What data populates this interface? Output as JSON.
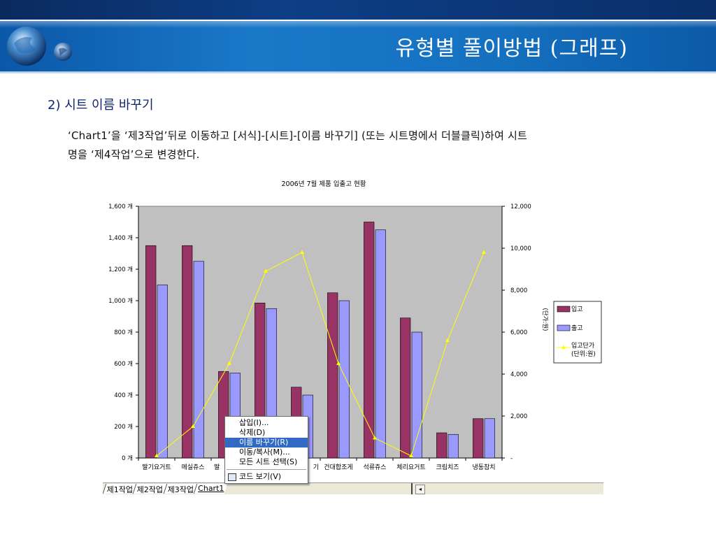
{
  "slide": {
    "title": "유형별 풀이방법 (그래프)",
    "section_heading": "2) 시트 이름 바꾸기",
    "body_line1": "‘Chart1’을 ‘제3작업’뒤로 이동하고 [서식]-[시트]-[이름 바꾸기] (또는 시트명에서 더블클릭)하여 시트",
    "body_line2": "명을 ‘제4작업’으로 변경한다."
  },
  "colors": {
    "bar_in": "#993366",
    "bar_out": "#9999ff",
    "line": "#ffff00",
    "plot_bg": "#c0c0c0",
    "banner": "#1570c0"
  },
  "chart_data": {
    "type": "bar",
    "title": "2006년 7월 제품 입출고 현황",
    "categories": [
      "딸기요거트",
      "메실쥬스",
      "딸기",
      "",
      "",
      "건대합조게",
      "석류쥬스",
      "체리요거트",
      "크림치즈",
      "냉동참치"
    ],
    "category_labels_visible": [
      "딸기요거트",
      "메실쥬스",
      "딸",
      "기",
      "건대합조게",
      "석류쥬스",
      "체리요거트",
      "크림치즈",
      "냉동참치"
    ],
    "series": [
      {
        "name": "입고",
        "type": "bar",
        "axis": "left",
        "values": [
          1350,
          1350,
          550,
          985,
          450,
          1050,
          1500,
          890,
          160,
          250
        ]
      },
      {
        "name": "출고",
        "type": "bar",
        "axis": "left",
        "values": [
          1100,
          1250,
          540,
          950,
          400,
          1000,
          1450,
          800,
          150,
          250
        ]
      },
      {
        "name": "입고단가\n(단위:원)",
        "type": "line",
        "axis": "right",
        "values": [
          100,
          1500,
          4500,
          8900,
          9800,
          4500,
          950,
          100,
          5600,
          9800
        ]
      }
    ],
    "left_axis": {
      "min": 0,
      "max": 1600,
      "step": 200,
      "ticks": [
        "0 개",
        "200 개",
        "400 개",
        "600 개",
        "800 개",
        "1,000 개",
        "1,200 개",
        "1,400 개",
        "1,600 개"
      ]
    },
    "right_axis": {
      "min": 0,
      "max": 12000,
      "step": 2000,
      "label": "(단가:원)",
      "ticks": [
        "-",
        "2,000",
        "4,000",
        "6,000",
        "8,000",
        "10,000",
        "12,000"
      ]
    },
    "legend": {
      "placement": "right",
      "entries": [
        {
          "label": "입고"
        },
        {
          "label": "출고"
        },
        {
          "label_line1": "입고단가",
          "label_line2": "(단위:원)"
        }
      ]
    },
    "grid": false
  },
  "sheet_tabs": [
    "제1작업",
    "제2작업",
    "제3작업",
    "Chart1"
  ],
  "context_menu": {
    "items": [
      {
        "label": "삽입(I)...",
        "selected": false
      },
      {
        "label": "삭제(D)",
        "selected": false
      },
      {
        "label": "이름 바꾸기(R)",
        "selected": true
      },
      {
        "label": "이동/복사(M)...",
        "selected": false
      },
      {
        "label": "모든 시트 선택(S)",
        "selected": false
      }
    ],
    "code_item": "코드 보기(V)"
  }
}
